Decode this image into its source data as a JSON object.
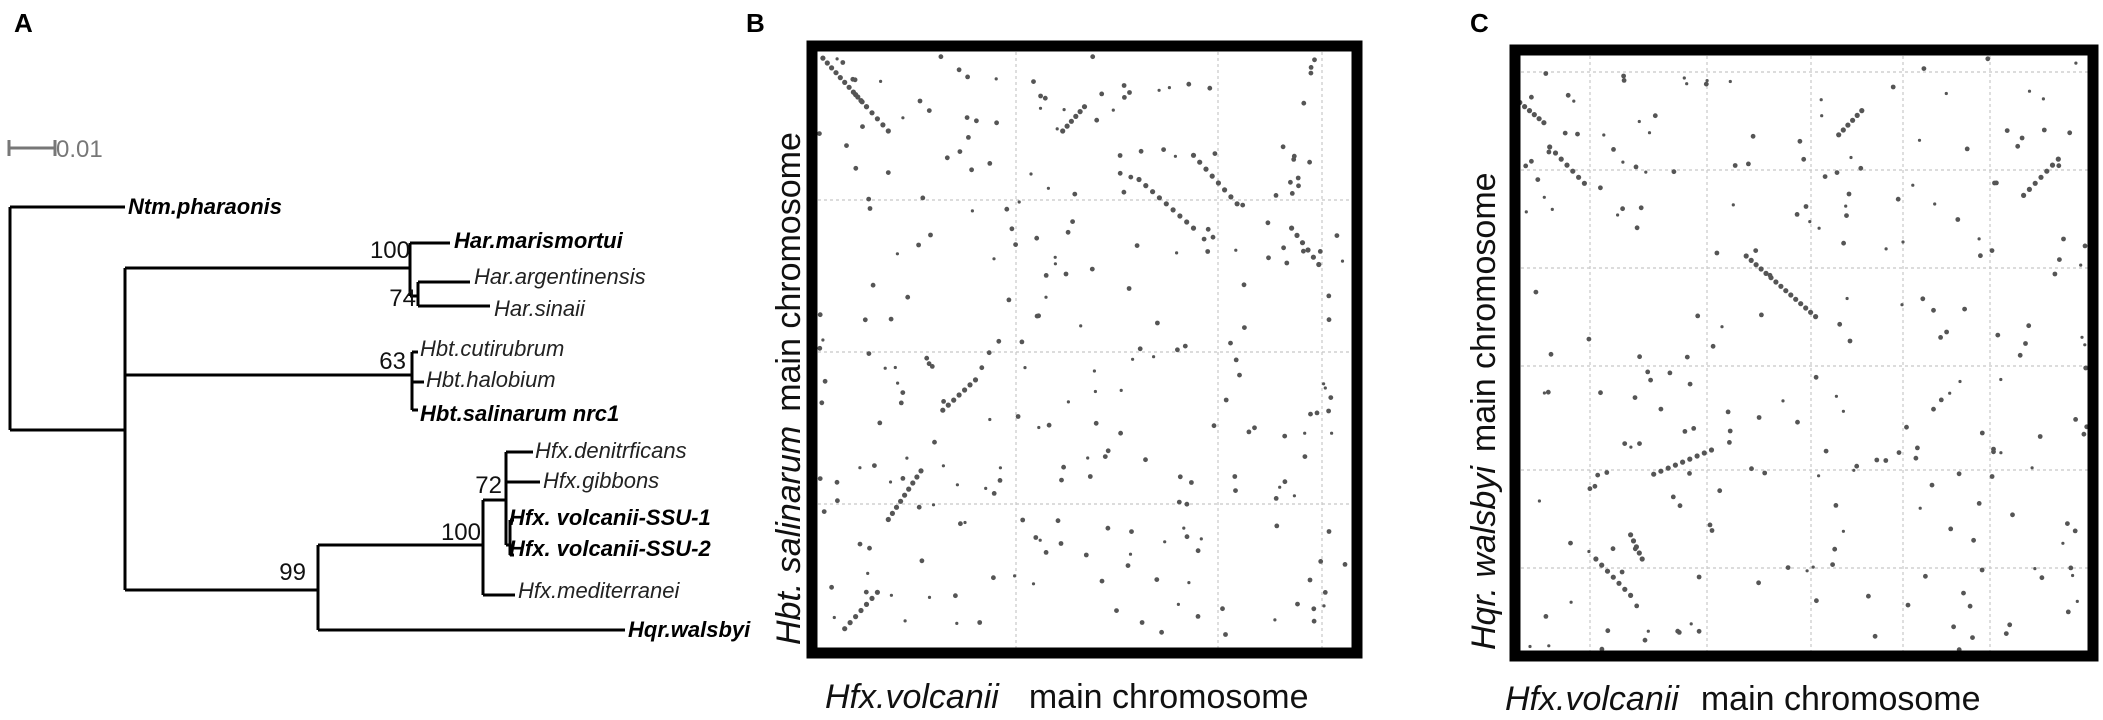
{
  "panels": {
    "a": "A",
    "b": "B",
    "c": "C"
  },
  "tree": {
    "scale_label": "0.01",
    "taxa": {
      "ntm": "Ntm.pharaonis",
      "har_mar": "Har.marismortui",
      "har_arg": "Har.argentinensis",
      "har_sin": "Har.sinaii",
      "hbt_cut": "Hbt.cutirubrum",
      "hbt_hal": "Hbt.halobium",
      "hbt_sal": "Hbt.salinarum nrc1",
      "hfx_den": "Hfx.denitrficans",
      "hfx_gib": "Hfx.gibbons",
      "hfx_v1": "Hfx. volcanii-SSU-1",
      "hfx_v2": "Hfx. volcanii-SSU-2",
      "hfx_med": "Hfx.mediterranei",
      "hqr": "Hqr.walsbyi"
    },
    "bootstrap": {
      "har": "100",
      "har_sub": "74",
      "hbt": "63",
      "hfx_sub": "72",
      "hfx": "100",
      "hfx_hqr": "99"
    }
  },
  "plot_b": {
    "ylabel_species": "Hbt. salinarum",
    "ylabel_rest": "main chromosome",
    "xlabel_species": "Hfx.volcanii",
    "xlabel_rest": "main chromosome"
  },
  "plot_c": {
    "ylabel_species": "Hqr. walsbyi",
    "ylabel_rest": "main chromosome",
    "xlabel_species": "Hfx.volcanii",
    "xlabel_rest": "main chromosome"
  },
  "colors": {
    "frame": "#000000",
    "dot": "#555555",
    "grid": "#c8c8c8",
    "tree": "#000000"
  }
}
